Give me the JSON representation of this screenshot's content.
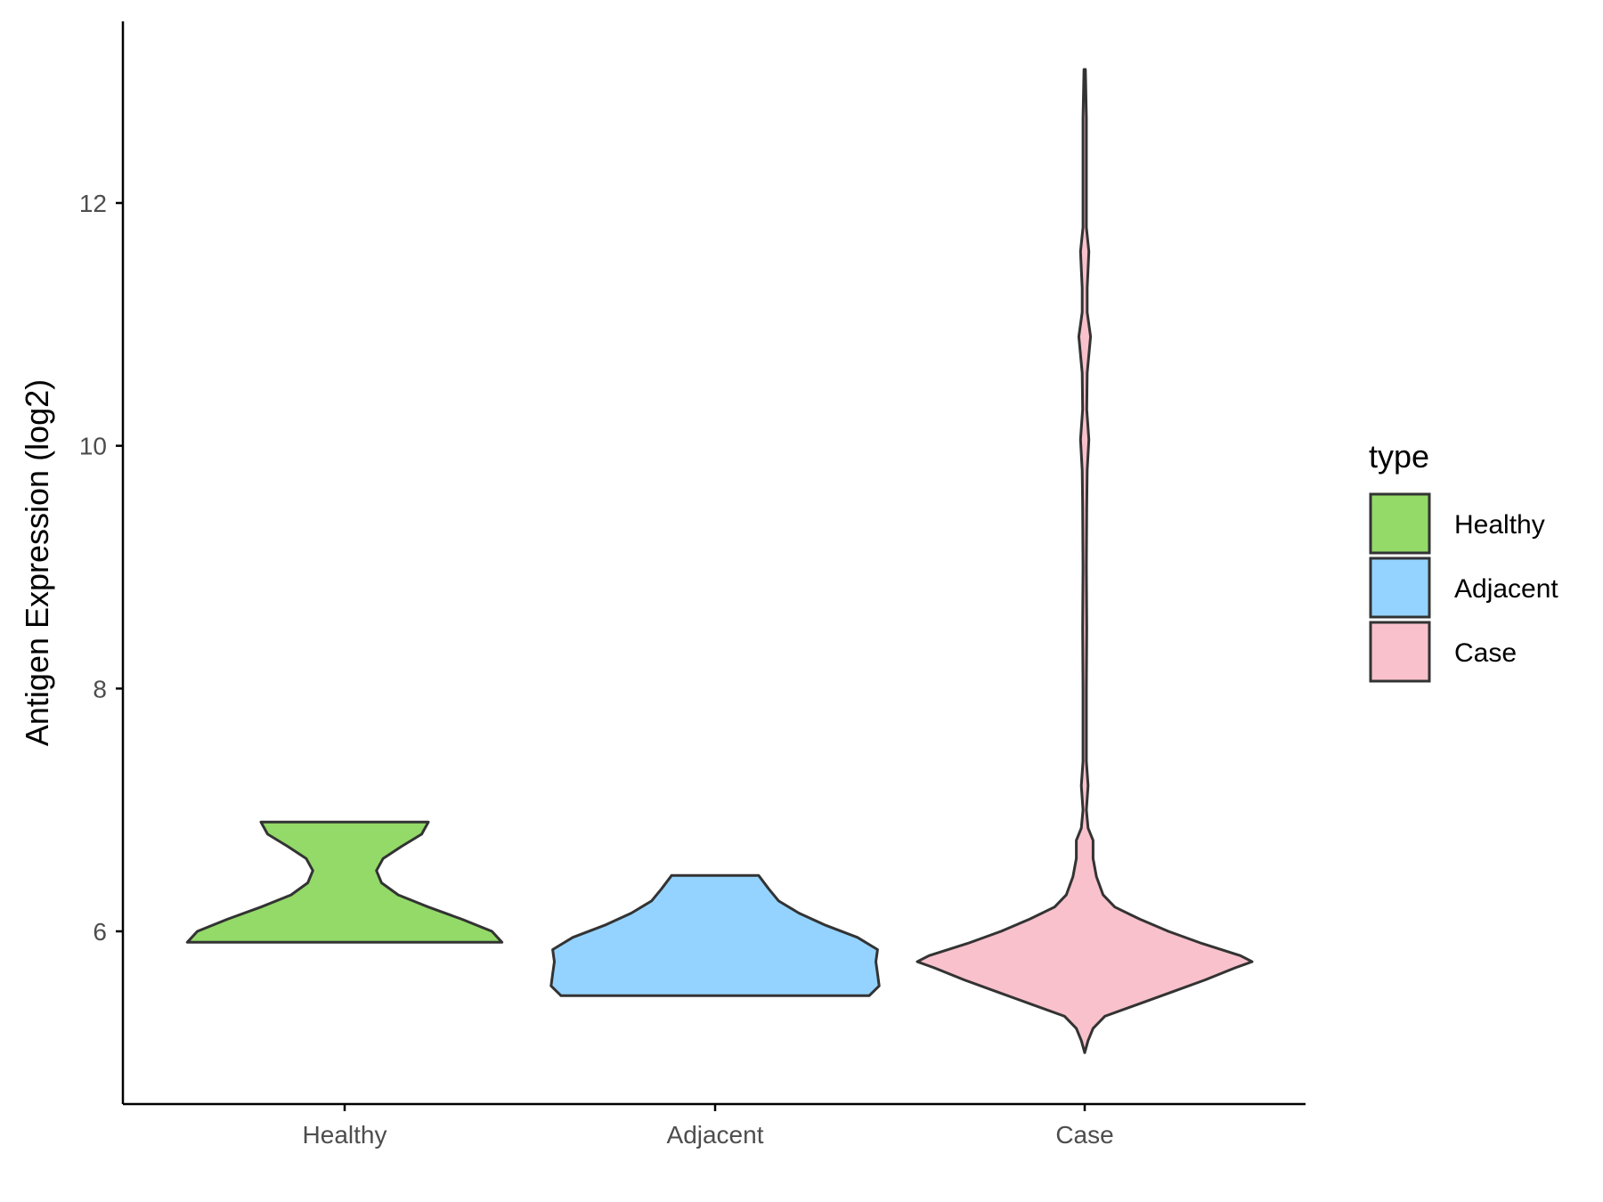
{
  "chart_data": {
    "type": "violin",
    "title": "",
    "xlabel": "",
    "ylabel": "Antigen Expression (log2)",
    "categories": [
      "Healthy",
      "Adjacent",
      "Case"
    ],
    "y_ticks": [
      "6",
      "8",
      "10",
      "12"
    ],
    "ylim": [
      4.7,
      13.6
    ],
    "legend": {
      "title": "type",
      "position": "right",
      "entries": [
        "Healthy",
        "Adjacent",
        "Case"
      ]
    },
    "colors": {
      "Healthy": "#93DA69",
      "Adjacent": "#94D3FF",
      "Case": "#F8C1CB",
      "outline": "#333333"
    },
    "grid": false,
    "series": [
      {
        "category": "Healthy",
        "min": 5.91,
        "max": 6.9,
        "density_profile": [
          {
            "y": 5.91,
            "w": 0.94
          },
          {
            "y": 6.0,
            "w": 0.88
          },
          {
            "y": 6.1,
            "w": 0.7
          },
          {
            "y": 6.2,
            "w": 0.5
          },
          {
            "y": 6.3,
            "w": 0.32
          },
          {
            "y": 6.4,
            "w": 0.22
          },
          {
            "y": 6.5,
            "w": 0.19
          },
          {
            "y": 6.6,
            "w": 0.23
          },
          {
            "y": 6.7,
            "w": 0.34
          },
          {
            "y": 6.8,
            "w": 0.46
          },
          {
            "y": 6.9,
            "w": 0.5
          }
        ]
      },
      {
        "category": "Adjacent",
        "min": 5.47,
        "max": 6.46,
        "density_profile": [
          {
            "y": 5.47,
            "w": 0.92
          },
          {
            "y": 5.55,
            "w": 0.98
          },
          {
            "y": 5.65,
            "w": 0.97
          },
          {
            "y": 5.75,
            "w": 0.96
          },
          {
            "y": 5.85,
            "w": 0.97
          },
          {
            "y": 5.95,
            "w": 0.85
          },
          {
            "y": 6.05,
            "w": 0.66
          },
          {
            "y": 6.15,
            "w": 0.5
          },
          {
            "y": 6.25,
            "w": 0.38
          },
          {
            "y": 6.35,
            "w": 0.32
          },
          {
            "y": 6.46,
            "w": 0.26
          }
        ]
      },
      {
        "category": "Case",
        "min": 5.0,
        "max": 13.1,
        "density_profile": [
          {
            "y": 5.0,
            "w": 0.0
          },
          {
            "y": 5.1,
            "w": 0.02
          },
          {
            "y": 5.2,
            "w": 0.05
          },
          {
            "y": 5.3,
            "w": 0.12
          },
          {
            "y": 5.4,
            "w": 0.32
          },
          {
            "y": 5.5,
            "w": 0.52
          },
          {
            "y": 5.6,
            "w": 0.72
          },
          {
            "y": 5.7,
            "w": 0.9
          },
          {
            "y": 5.75,
            "w": 1.0
          },
          {
            "y": 5.8,
            "w": 0.93
          },
          {
            "y": 5.9,
            "w": 0.7
          },
          {
            "y": 6.0,
            "w": 0.5
          },
          {
            "y": 6.1,
            "w": 0.33
          },
          {
            "y": 6.2,
            "w": 0.18
          },
          {
            "y": 6.3,
            "w": 0.11
          },
          {
            "y": 6.45,
            "w": 0.07
          },
          {
            "y": 6.6,
            "w": 0.05
          },
          {
            "y": 6.75,
            "w": 0.05
          },
          {
            "y": 6.85,
            "w": 0.02
          },
          {
            "y": 7.0,
            "w": 0.01
          },
          {
            "y": 7.2,
            "w": 0.02
          },
          {
            "y": 7.4,
            "w": 0.01
          },
          {
            "y": 8.0,
            "w": 0.01
          },
          {
            "y": 8.5,
            "w": 0.012
          },
          {
            "y": 9.0,
            "w": 0.01
          },
          {
            "y": 9.5,
            "w": 0.012
          },
          {
            "y": 9.8,
            "w": 0.015
          },
          {
            "y": 10.05,
            "w": 0.025
          },
          {
            "y": 10.3,
            "w": 0.012
          },
          {
            "y": 10.6,
            "w": 0.015
          },
          {
            "y": 10.9,
            "w": 0.035
          },
          {
            "y": 11.1,
            "w": 0.015
          },
          {
            "y": 11.3,
            "w": 0.015
          },
          {
            "y": 11.6,
            "w": 0.025
          },
          {
            "y": 11.8,
            "w": 0.01
          },
          {
            "y": 12.2,
            "w": 0.01
          },
          {
            "y": 12.7,
            "w": 0.01
          },
          {
            "y": 13.1,
            "w": 0.004
          }
        ]
      }
    ]
  }
}
